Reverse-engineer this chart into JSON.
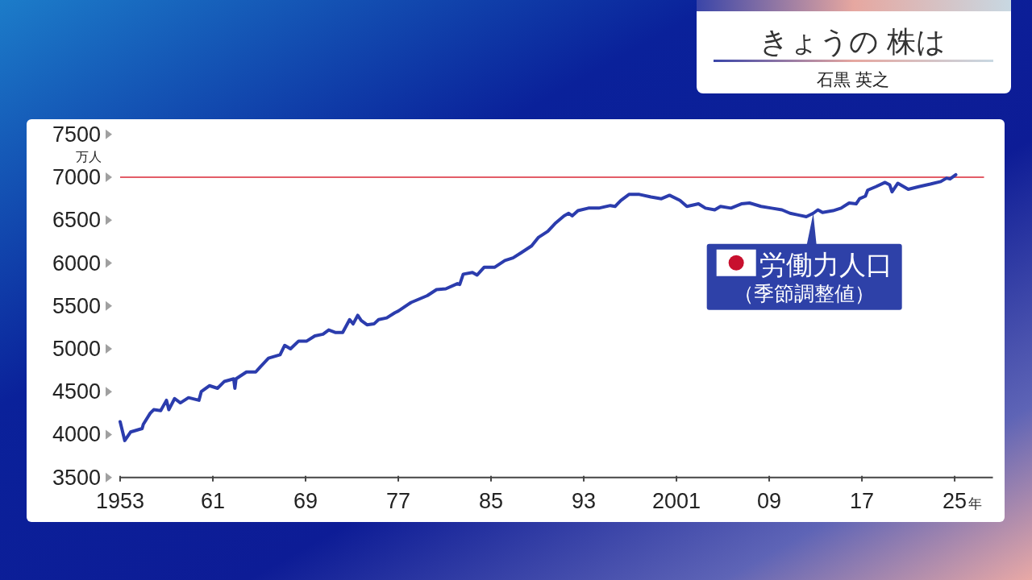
{
  "chart_data": {
    "type": "line",
    "title": "きょうの 株は",
    "subtitle": "石黒 英之",
    "ylabel": "万人",
    "xlabel": "年",
    "x": [
      1953.0,
      1953.4,
      1953.9,
      1954.9,
      1955.0,
      1955.6,
      1955.9,
      1956.5,
      1957.0,
      1957.2,
      1957.7,
      1958.2,
      1958.9,
      1959.8,
      1960.0,
      1960.7,
      1961.4,
      1962.0,
      1962.8,
      1962.9,
      1963.0,
      1963.9,
      1964.7,
      1965.1,
      1965.8,
      1966.8,
      1967.2,
      1967.7,
      1968.4,
      1969.1,
      1969.8,
      1970.5,
      1971.0,
      1971.6,
      1972.2,
      1972.8,
      1973.1,
      1973.5,
      1973.8,
      1974.3,
      1974.9,
      1975.3,
      1976.0,
      1976.7,
      1977.0,
      1978.1,
      1978.8,
      1979.5,
      1980.3,
      1981.1,
      1982.1,
      1982.3,
      1982.6,
      1983.4,
      1983.8,
      1984.4,
      1985.3,
      1986.2,
      1986.9,
      1987.6,
      1988.5,
      1989.1,
      1989.9,
      1990.6,
      1991.3,
      1991.7,
      1992.0,
      1992.5,
      1993.4,
      1994.3,
      1995.3,
      1995.7,
      1996.2,
      1996.9,
      1997.8,
      1998.8,
      1999.7,
      2000.4,
      2001.3,
      2001.9,
      2002.9,
      2003.5,
      2004.3,
      2004.8,
      2005.7,
      2006.6,
      2007.3,
      2008.3,
      2009.2,
      2010.1,
      2010.8,
      2011.5,
      2012.2,
      2012.8,
      2013.2,
      2013.6,
      2014.5,
      2015.2,
      2015.9,
      2016.5,
      2016.8,
      2017.3,
      2017.5,
      2018.2,
      2019.0,
      2019.4,
      2019.6,
      2020.1,
      2021.0,
      2021.9,
      2022.9,
      2023.8,
      2024.3,
      2024.6,
      2025.1
    ],
    "series": [
      {
        "color": "#2b3cad",
        "values": [
          4150,
          3930,
          4030,
          4070,
          4120,
          4250,
          4290,
          4280,
          4400,
          4290,
          4420,
          4370,
          4430,
          4400,
          4500,
          4570,
          4540,
          4620,
          4650,
          4540,
          4650,
          4730,
          4730,
          4790,
          4890,
          4930,
          5040,
          5000,
          5090,
          5090,
          5150,
          5170,
          5220,
          5190,
          5190,
          5340,
          5290,
          5390,
          5330,
          5280,
          5290,
          5340,
          5360,
          5420,
          5440,
          5540,
          5580,
          5620,
          5690,
          5700,
          5760,
          5750,
          5870,
          5890,
          5860,
          5950,
          5950,
          6030,
          6060,
          6120,
          6200,
          6300,
          6370,
          6470,
          6550,
          6580,
          6550,
          6610,
          6640,
          6640,
          6670,
          6660,
          6730,
          6800,
          6800,
          6770,
          6750,
          6790,
          6730,
          6660,
          6690,
          6640,
          6620,
          6660,
          6640,
          6690,
          6700,
          6660,
          6640,
          6620,
          6580,
          6560,
          6540,
          6580,
          6620,
          6590,
          6610,
          6640,
          6700,
          6690,
          6750,
          6780,
          6850,
          6890,
          6940,
          6910,
          6830,
          6930,
          6860,
          6890,
          6920,
          6950,
          6990,
          6980,
          7030
        ]
      }
    ],
    "xlim": [
      1953,
      2028.3
    ],
    "xticks": [
      1953,
      {
        "value": 1961,
        "label": "61"
      },
      {
        "value": 1969,
        "label": "69"
      },
      {
        "value": 1977,
        "label": "77"
      },
      {
        "value": 1985,
        "label": "85"
      },
      {
        "value": 1993,
        "label": "93"
      },
      2001,
      {
        "value": 2009,
        "label": "09"
      },
      {
        "value": 2017,
        "label": "17"
      },
      {
        "value": 2025,
        "label": "25"
      }
    ],
    "ylim": [
      3500,
      7500
    ],
    "yticks": [
      3500,
      4000,
      4500,
      5000,
      5500,
      6000,
      6500,
      7000,
      7500
    ],
    "ref_lines": [
      {
        "axis": "y",
        "value": 7000,
        "color": "#e35d68"
      }
    ],
    "annotations": [
      {
        "text": "労働力人口",
        "x": 2012.8,
        "y": 6580
      },
      "（季節調整値）"
    ],
    "line_style": "solid"
  }
}
